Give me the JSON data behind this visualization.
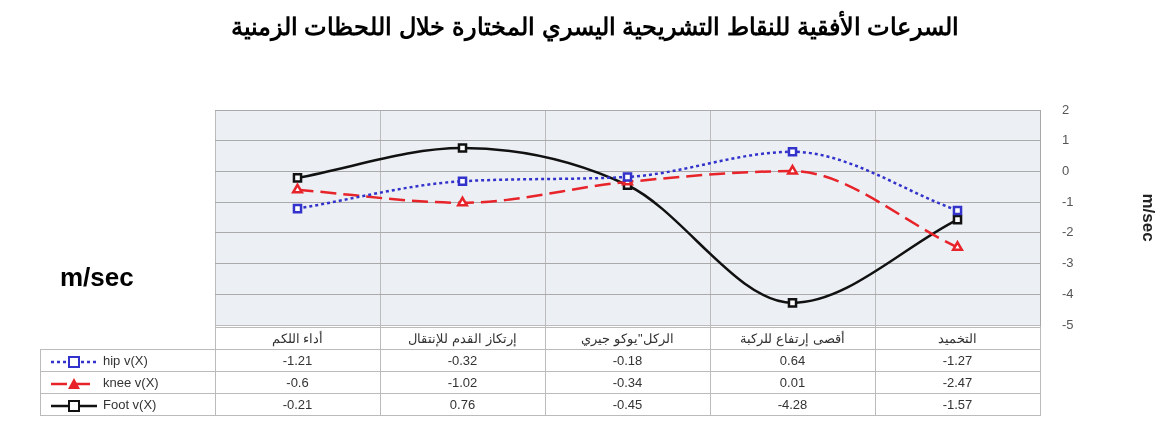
{
  "chart_data": {
    "type": "line",
    "title": "السرعات الأفقية للنقاط التشريحية اليسري المختارة خلال اللحظات الزمنية",
    "ylabel": "m/sec",
    "annotations": [
      "m/sec"
    ],
    "categories": [
      "أداء اللكم",
      "إرتكاز القدم للإنتقال",
      "الركل\"يوكو جيري",
      "أقصى إرتفاع للركبة",
      "التخميد"
    ],
    "series": [
      {
        "name": "hip v(X)",
        "color": "#3333cc",
        "values": [
          -1.21,
          -0.32,
          -0.18,
          0.64,
          -1.27
        ],
        "marker": "square",
        "line_style": "dotted"
      },
      {
        "name": "knee v(X)",
        "color": "#e8242b",
        "values": [
          -0.6,
          -1.02,
          -0.34,
          0.01,
          -2.47
        ],
        "marker": "triangle",
        "line_style": "dashed"
      },
      {
        "name": "Foot v(X)",
        "color": "#111111",
        "values": [
          -0.21,
          0.76,
          -0.45,
          -4.28,
          -1.57
        ],
        "marker": "square",
        "line_style": "solid"
      }
    ],
    "ylim": [
      -5,
      2
    ],
    "yticks": [
      -5,
      -4,
      -3,
      -2,
      -1,
      0,
      1,
      2
    ],
    "grid": true,
    "legend": "bottom left",
    "data_labels": true
  }
}
